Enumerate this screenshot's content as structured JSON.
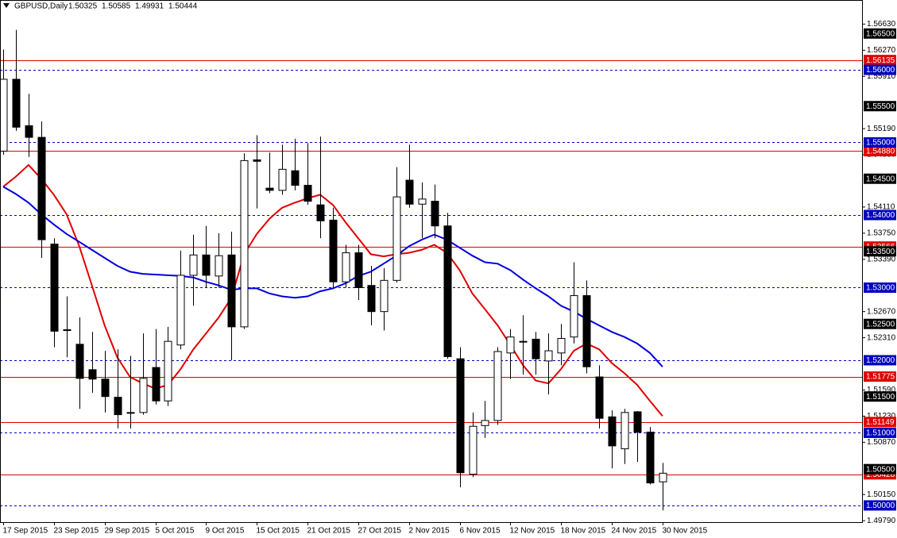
{
  "chart_data": {
    "type": "candlestick",
    "title": "GBPUSD,Daily",
    "header_values": [
      1.50325,
      1.50585,
      1.49931,
      1.50444
    ],
    "categories": [
      "17 Sep 2015",
      null,
      null,
      null,
      "23 Sep 2015",
      null,
      null,
      null,
      "29 Sep 2015",
      null,
      null,
      null,
      "5 Oct 2015",
      null,
      null,
      null,
      "9 Oct 2015",
      null,
      null,
      null,
      "15 Oct 2015",
      null,
      null,
      null,
      "21 Oct 2015",
      null,
      null,
      null,
      "27 Oct 2015",
      null,
      null,
      null,
      "2 Nov 2015",
      null,
      null,
      null,
      "6 Nov 2015",
      null,
      null,
      null,
      "12 Nov 2015",
      null,
      null,
      null,
      "18 Nov 2015",
      null,
      null,
      null,
      "24 Nov 2015",
      null,
      null,
      null,
      "30 Nov 2015"
    ],
    "open": [
      1.5488,
      1.5587,
      1.5523,
      1.5507,
      1.536,
      1.5242,
      1.5222,
      1.5187,
      1.5174,
      1.5149,
      1.5127,
      1.5128,
      1.519,
      1.5144,
      1.5221,
      1.5317,
      1.5345,
      1.5316,
      1.5345,
      1.5246,
      1.5476,
      1.5437,
      1.5434,
      1.5461,
      1.5441,
      1.5414,
      1.5393,
      1.5308,
      1.5348,
      1.5303,
      1.5267,
      1.531,
      1.5448,
      1.5415,
      1.5419,
      1.5385,
      1.5202,
      1.5043,
      1.511,
      1.5117,
      1.521,
      1.5225,
      1.5229,
      1.5199,
      1.521,
      1.5232,
      1.5289,
      1.5177,
      1.5122,
      1.5078,
      1.5129,
      1.5101,
      1.50325
    ],
    "high": [
      1.5628,
      1.5655,
      1.5567,
      1.5529,
      1.5368,
      1.5288,
      1.5259,
      1.5239,
      1.5213,
      1.5215,
      1.5206,
      1.5237,
      1.5243,
      1.5246,
      1.5351,
      1.5373,
      1.5385,
      1.5375,
      1.5377,
      1.5485,
      1.551,
      1.5486,
      1.5497,
      1.5505,
      1.5499,
      1.5508,
      1.541,
      1.5359,
      1.5359,
      1.533,
      1.5327,
      1.5466,
      1.5497,
      1.5445,
      1.5442,
      1.5403,
      1.5218,
      1.5128,
      1.5144,
      1.5218,
      1.5243,
      1.5262,
      1.5239,
      1.5237,
      1.525,
      1.5335,
      1.531,
      1.5193,
      1.5131,
      1.5133,
      1.513,
      1.5108,
      1.50585
    ],
    "low": [
      1.5483,
      1.5516,
      1.548,
      1.5341,
      1.5218,
      1.5204,
      1.5133,
      1.5155,
      1.5128,
      1.5106,
      1.5106,
      1.5125,
      1.5139,
      1.5137,
      1.5215,
      1.5275,
      1.53,
      1.53,
      1.52,
      1.5243,
      1.5409,
      1.543,
      1.5428,
      1.5434,
      1.5414,
      1.5368,
      1.53,
      1.53,
      1.5283,
      1.5248,
      1.5241,
      1.5307,
      1.541,
      1.5368,
      1.5368,
      1.5202,
      1.5025,
      1.5039,
      1.5093,
      1.5111,
      1.5174,
      1.518,
      1.518,
      1.5153,
      1.5193,
      1.5223,
      1.5182,
      1.5106,
      1.5051,
      1.5057,
      1.506,
      1.5029,
      1.49931
    ],
    "close": [
      1.5587,
      1.5521,
      1.5507,
      1.5366,
      1.524,
      1.5241,
      1.5175,
      1.5174,
      1.515,
      1.5125,
      1.5128,
      1.5175,
      1.5144,
      1.5226,
      1.5317,
      1.5345,
      1.5317,
      1.5344,
      1.5246,
      1.5475,
      1.5474,
      1.5434,
      1.5463,
      1.5441,
      1.5419,
      1.5392,
      1.5308,
      1.5348,
      1.53,
      1.5267,
      1.531,
      1.5425,
      1.5415,
      1.5422,
      1.5385,
      1.5205,
      1.5045,
      1.5109,
      1.5117,
      1.5212,
      1.5232,
      1.5226,
      1.5202,
      1.5213,
      1.523,
      1.5289,
      1.5191,
      1.512,
      1.5082,
      1.5128,
      1.5101,
      1.5031,
      1.50444
    ],
    "up_color": "#ffffff",
    "down_color": "#000000",
    "moving_averages": [
      {
        "color": "#e00000",
        "values": [
          1.5439,
          1.5453,
          1.5469,
          1.545,
          1.5428,
          1.5401,
          1.5357,
          1.5303,
          1.5248,
          1.5204,
          1.5177,
          1.5168,
          1.5161,
          1.5166,
          1.5188,
          1.5215,
          1.5237,
          1.5259,
          1.5286,
          1.5346,
          1.5374,
          1.5395,
          1.541,
          1.5417,
          1.5423,
          1.5428,
          1.5414,
          1.539,
          1.5368,
          1.5346,
          1.5343,
          1.5346,
          1.5348,
          1.5352,
          1.5359,
          1.5348,
          1.5324,
          1.5292,
          1.527,
          1.5248,
          1.5221,
          1.5193,
          1.5172,
          1.5168,
          1.5188,
          1.5213,
          1.5223,
          1.5215,
          1.5196,
          1.5182,
          1.5166,
          1.5144,
          1.5123
        ]
      },
      {
        "color": "#0000dd",
        "values": [
          1.5439,
          1.5429,
          1.5417,
          1.5401,
          1.5387,
          1.5374,
          1.5363,
          1.5352,
          1.5341,
          1.533,
          1.5322,
          1.5319,
          1.5318,
          1.5317,
          1.5316,
          1.5314,
          1.5308,
          1.5303,
          1.5297,
          1.5299,
          1.5299,
          1.5292,
          1.5288,
          1.5286,
          1.5288,
          1.5295,
          1.5299,
          1.5306,
          1.5316,
          1.5322,
          1.5333,
          1.5344,
          1.5357,
          1.5366,
          1.5373,
          1.5366,
          1.5355,
          1.5344,
          1.5335,
          1.5333,
          1.5324,
          1.5311,
          1.5299,
          1.5288,
          1.5275,
          1.5267,
          1.5257,
          1.5248,
          1.5239,
          1.5232,
          1.5223,
          1.521,
          1.5191
        ]
      }
    ],
    "hlines": [
      {
        "value": 1.56135,
        "color": "#e00000",
        "style": "solid"
      },
      {
        "value": 1.5488,
        "label": "1.54880",
        "color": "#e00000",
        "style": "solid"
      },
      {
        "value": 1.53566,
        "color": "#e00000",
        "style": "solid"
      },
      {
        "value": 1.51775,
        "color": "#e00000",
        "style": "solid"
      },
      {
        "value": 1.51149,
        "color": "#e00000",
        "style": "solid"
      },
      {
        "value": 1.50428,
        "color": "#e00000",
        "style": "solid"
      },
      {
        "value": 1.56,
        "label": "1.56000",
        "color": "#0000c0",
        "style": "dashed"
      },
      {
        "value": 1.55,
        "label": "1.55000",
        "color": "#0000c0",
        "style": "dashed"
      },
      {
        "value": 1.54,
        "label": "1.54000",
        "color": "#0000c0",
        "style": "dashed"
      },
      {
        "value": 1.53,
        "label": "1.53000",
        "color": "#0000c0",
        "style": "dashed"
      },
      {
        "value": 1.52,
        "label": "1.52000",
        "color": "#0000c0",
        "style": "dashed"
      },
      {
        "value": 1.51,
        "label": "1.51000",
        "color": "#0000c0",
        "style": "dashed"
      },
      {
        "value": 1.5,
        "label": "1.50000",
        "color": "#0000c0",
        "style": "dashed"
      }
    ],
    "price_labels": [
      {
        "value": 1.565,
        "label": "1.56500"
      },
      {
        "value": 1.555,
        "label": "1.55500"
      },
      {
        "value": 1.545,
        "label": "1.54500"
      },
      {
        "value": 1.535,
        "label": "1.53500"
      },
      {
        "value": 1.525,
        "label": "1.52500"
      },
      {
        "value": 1.515,
        "label": "1.51500"
      },
      {
        "value": 1.505,
        "label": "1.50500"
      }
    ],
    "ylim": [
      1.4977,
      1.5694
    ],
    "yticks": [
      {
        "value": 1.5663,
        "label": "1.56630"
      },
      {
        "value": 1.5627,
        "label": "1.56270"
      },
      {
        "value": 1.5591,
        "label": "1.55910"
      },
      {
        "value": 1.5519,
        "label": "1.55190"
      },
      {
        "value": 1.5483,
        "label": "1.54830"
      },
      {
        "value": 1.5411,
        "label": "1.54110"
      },
      {
        "value": 1.5375,
        "label": "1.53750"
      },
      {
        "value": 1.5339,
        "label": "1.53390"
      },
      {
        "value": 1.5267,
        "label": "1.52670"
      },
      {
        "value": 1.5231,
        "label": "1.52310"
      },
      {
        "value": 1.5159,
        "label": "1.51590"
      },
      {
        "value": 1.5123,
        "label": "1.51230"
      },
      {
        "value": 1.5087,
        "label": "1.50870"
      },
      {
        "value": 1.5015,
        "label": "1.50150"
      },
      {
        "value": 1.4979,
        "label": "1.49790"
      }
    ]
  }
}
